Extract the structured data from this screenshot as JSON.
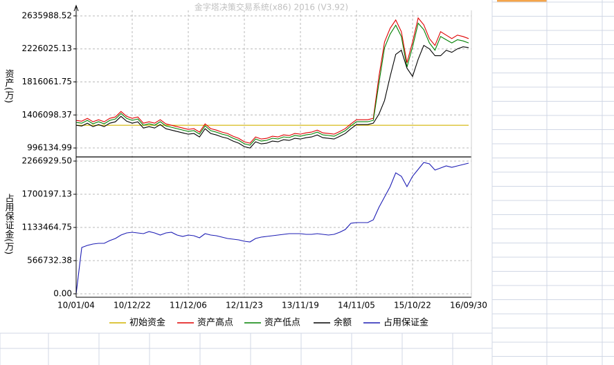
{
  "chart_data": [
    {
      "type": "line",
      "title": "金字塔决策交易系统(x86) 2016 (V3.92)",
      "y_label": "资产(万)",
      "ylim": [
        893644,
        2704316
      ],
      "yticks": [
        996134.99,
        1406098.37,
        1816061.75,
        2226025.13,
        2635988.52
      ],
      "grid": true,
      "series": [
        {
          "name": "初始资金",
          "color": "#d2b400",
          "values": [
            1278000,
            1278000,
            1278000,
            1278000,
            1278000,
            1278000,
            1278000,
            1278000,
            1278000,
            1278000,
            1278000,
            1278000,
            1278000,
            1278000,
            1278000,
            1278000,
            1278000,
            1278000,
            1278000,
            1278000,
            1278000,
            1278000,
            1278000,
            1278000,
            1278000,
            1278000,
            1278000,
            1278000,
            1278000,
            1278000,
            1278000,
            1278000,
            1278000,
            1278000,
            1278000,
            1278000,
            1278000,
            1278000,
            1278000,
            1278000,
            1278000,
            1278000,
            1278000,
            1278000,
            1278000,
            1278000,
            1278000,
            1278000,
            1278000,
            1278000,
            1278000,
            1278000,
            1278000,
            1278000,
            1278000,
            1278000,
            1278000,
            1278000,
            1278000,
            1278000,
            1278000,
            1278000,
            1278000,
            1278000,
            1278000,
            1278000,
            1278000,
            1278000,
            1278000,
            1278000,
            1278000
          ]
        },
        {
          "name": "资产高点",
          "color": "#e00000",
          "values": [
            1338000,
            1329000,
            1364000,
            1321000,
            1347000,
            1321000,
            1364000,
            1381000,
            1449000,
            1389000,
            1364000,
            1381000,
            1304000,
            1321000,
            1304000,
            1347000,
            1295000,
            1278000,
            1261000,
            1244000,
            1227000,
            1236000,
            1193000,
            1295000,
            1236000,
            1218000,
            1193000,
            1176000,
            1142000,
            1116000,
            1073000,
            1056000,
            1133000,
            1107000,
            1116000,
            1142000,
            1133000,
            1159000,
            1150000,
            1176000,
            1167000,
            1184000,
            1193000,
            1218000,
            1184000,
            1176000,
            1167000,
            1201000,
            1236000,
            1295000,
            1347000,
            1347000,
            1347000,
            1364000,
            1884000,
            2311000,
            2482000,
            2585000,
            2440000,
            2055000,
            2311000,
            2610000,
            2525000,
            2354000,
            2269000,
            2440000,
            2397000,
            2354000,
            2397000,
            2380000,
            2354000
          ]
        },
        {
          "name": "资产低点",
          "color": "#008000",
          "values": [
            1313000,
            1304000,
            1339000,
            1296000,
            1322000,
            1296000,
            1339000,
            1356000,
            1424000,
            1364000,
            1339000,
            1356000,
            1279000,
            1296000,
            1279000,
            1322000,
            1270000,
            1253000,
            1236000,
            1219000,
            1202000,
            1211000,
            1168000,
            1270000,
            1211000,
            1193000,
            1168000,
            1151000,
            1117000,
            1091000,
            1048000,
            1031000,
            1108000,
            1082000,
            1091000,
            1117000,
            1108000,
            1134000,
            1125000,
            1151000,
            1142000,
            1159000,
            1168000,
            1193000,
            1159000,
            1151000,
            1142000,
            1176000,
            1211000,
            1270000,
            1322000,
            1322000,
            1322000,
            1339000,
            1800000,
            2240000,
            2410000,
            2520000,
            2380000,
            2000000,
            2250000,
            2545000,
            2465000,
            2300000,
            2210000,
            2380000,
            2340000,
            2300000,
            2340000,
            2325000,
            2300000
          ]
        },
        {
          "name": "余额",
          "color": "#000000",
          "values": [
            1278000,
            1269000,
            1304000,
            1261000,
            1287000,
            1261000,
            1304000,
            1321000,
            1389000,
            1329000,
            1304000,
            1321000,
            1244000,
            1261000,
            1244000,
            1287000,
            1235000,
            1218000,
            1201000,
            1184000,
            1167000,
            1176000,
            1133000,
            1235000,
            1176000,
            1158000,
            1133000,
            1116000,
            1082000,
            1056000,
            1013000,
            996000,
            1073000,
            1047000,
            1056000,
            1082000,
            1073000,
            1099000,
            1090000,
            1116000,
            1107000,
            1124000,
            1133000,
            1158000,
            1124000,
            1116000,
            1107000,
            1141000,
            1176000,
            1235000,
            1287000,
            1287000,
            1287000,
            1304000,
            1415000,
            1585000,
            1884000,
            2158000,
            2209000,
            1987000,
            1884000,
            2098000,
            2269000,
            2226000,
            2141000,
            2141000,
            2209000,
            2183000,
            2226000,
            2252000,
            2243000
          ]
        }
      ]
    },
    {
      "type": "line",
      "y_label": "占用保证金(万)",
      "ylim": [
        -59035,
        2325964
      ],
      "yticks": [
        {
          "value": 0,
          "label": "0.00"
        },
        566732.38,
        1133464.75,
        1700197.13,
        {
          "value": 2266929.5,
          "label": "2266929.50"
        }
      ],
      "grid": true,
      "categories": [
        "10/01/04",
        null,
        null,
        null,
        null,
        null,
        null,
        null,
        null,
        null,
        "10/12/22",
        null,
        null,
        null,
        null,
        null,
        null,
        null,
        null,
        null,
        "11/12/06",
        null,
        null,
        null,
        null,
        null,
        null,
        null,
        null,
        null,
        "12/11/23",
        null,
        null,
        null,
        null,
        null,
        null,
        null,
        null,
        null,
        "13/11/19",
        null,
        null,
        null,
        null,
        null,
        null,
        null,
        null,
        null,
        "14/11/05",
        null,
        null,
        null,
        null,
        null,
        null,
        null,
        null,
        null,
        "15/10/22",
        null,
        null,
        null,
        null,
        null,
        null,
        null,
        null,
        null,
        "16/09/30"
      ],
      "series": [
        {
          "name": "占用保证金",
          "color": "#1c1cb4",
          "values": [
            0,
            791000,
            826000,
            850000,
            862000,
            862000,
            909000,
            945000,
            1004000,
            1039000,
            1051000,
            1039000,
            1027000,
            1063000,
            1039000,
            1004000,
            1039000,
            1051000,
            1004000,
            980000,
            1004000,
            992000,
            956000,
            1027000,
            1004000,
            992000,
            968000,
            945000,
            933000,
            921000,
            897000,
            886000,
            945000,
            968000,
            980000,
            992000,
            1004000,
            1015000,
            1027000,
            1027000,
            1027000,
            1015000,
            1015000,
            1027000,
            1015000,
            1004000,
            1015000,
            1051000,
            1098000,
            1204000,
            1216000,
            1216000,
            1216000,
            1263000,
            1476000,
            1653000,
            1830000,
            2066000,
            2007000,
            1830000,
            2007000,
            2125000,
            2243000,
            2220000,
            2113000,
            2149000,
            2184000,
            2161000,
            2184000,
            2208000,
            2232000
          ]
        }
      ]
    }
  ]
}
